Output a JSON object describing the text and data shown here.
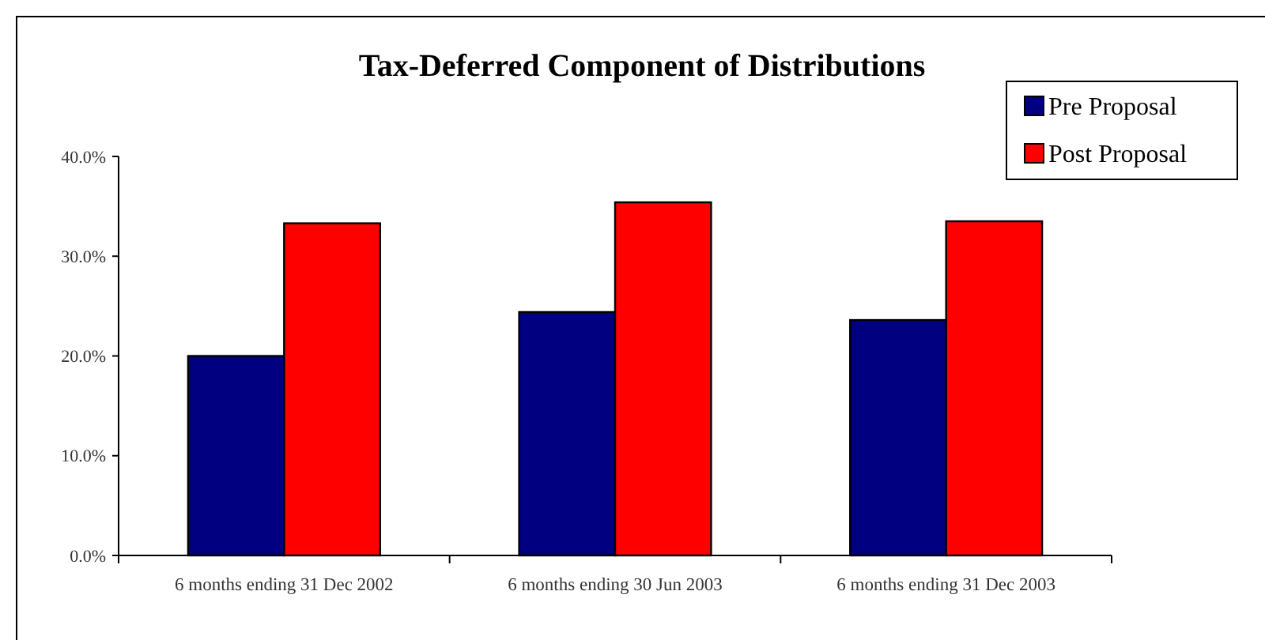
{
  "chart_data": {
    "type": "bar",
    "title": "Tax-Deferred Component of Distributions",
    "categories": [
      "6 months ending 31 Dec 2002",
      "6 months ending 30 Jun 2003",
      "6 months ending 31 Dec 2003"
    ],
    "series": [
      {
        "name": "Pre Proposal",
        "color": "#000080",
        "values": [
          20.0,
          24.4,
          23.6
        ]
      },
      {
        "name": "Post Proposal",
        "color": "#ff0000",
        "values": [
          33.3,
          35.4,
          33.5
        ]
      }
    ],
    "ylim": [
      0,
      40
    ],
    "yticks": [
      {
        "value": 0,
        "label": "0.0%"
      },
      {
        "value": 10,
        "label": "10.0%"
      },
      {
        "value": 20,
        "label": "20.0%"
      },
      {
        "value": 30,
        "label": "30.0%"
      },
      {
        "value": 40,
        "label": "40.0%"
      }
    ],
    "grid": false,
    "legend": "top right"
  }
}
